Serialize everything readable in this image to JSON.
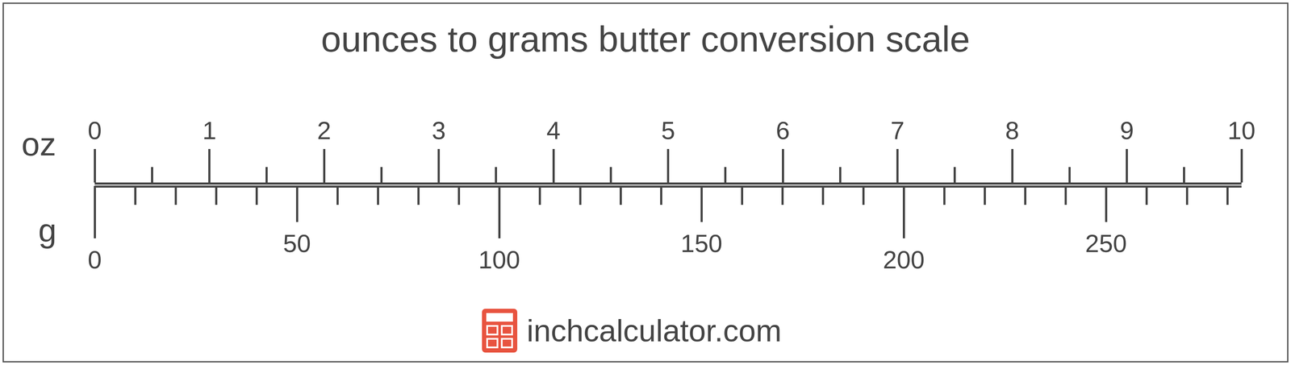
{
  "chart_data": {
    "type": "scale",
    "title": "ounces to grams butter conversion scale",
    "xlabel": "oz",
    "x2label": "g",
    "xlim": [
      0,
      10
    ],
    "xticks": [
      0,
      1,
      2,
      3,
      4,
      5,
      6,
      7,
      8,
      9,
      10
    ],
    "x2lim": [
      0,
      283.495
    ],
    "x2ticks": [
      0,
      50,
      100,
      150,
      200,
      250
    ],
    "annotations": [
      "inchcalculator.com"
    ]
  }
}
